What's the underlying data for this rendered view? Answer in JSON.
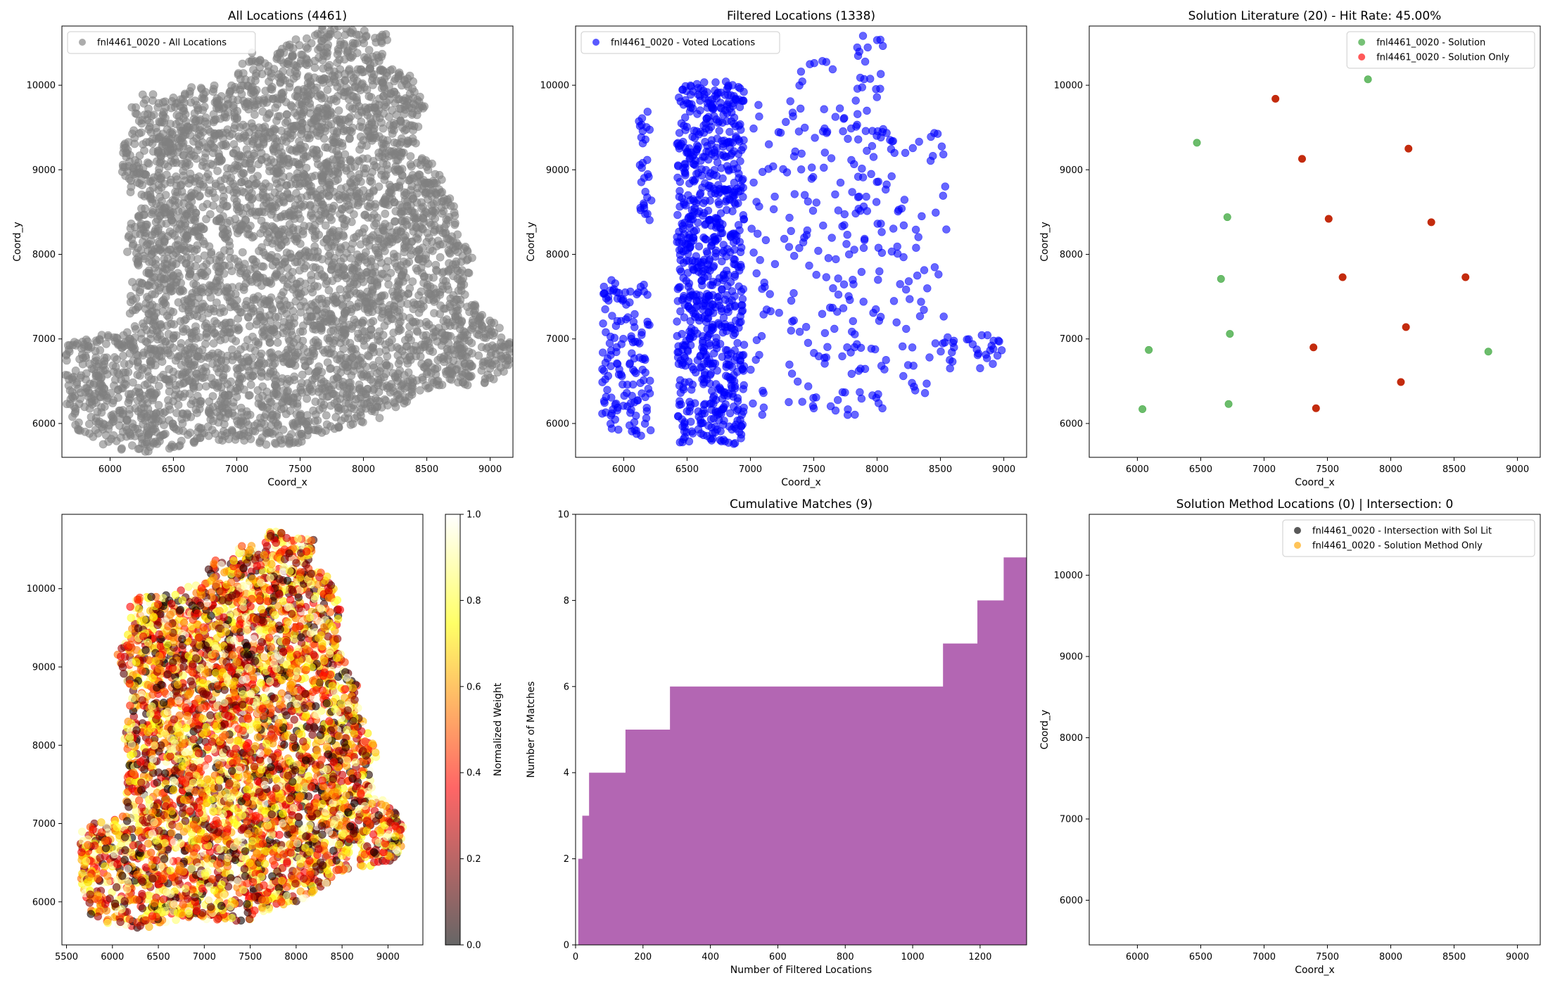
{
  "chart_data": [
    {
      "id": "p1",
      "type": "scatter",
      "title": "All Locations (4461)",
      "xlabel": "Coord_x",
      "ylabel": "Coord_y",
      "xlim": [
        5620,
        9180
      ],
      "ylim": [
        5600,
        10700
      ],
      "xticks": [
        6000,
        6500,
        7000,
        7500,
        8000,
        8500,
        9000
      ],
      "yticks": [
        6000,
        7000,
        8000,
        9000,
        10000
      ],
      "legend": {
        "position": "top-left",
        "entries": [
          {
            "label": "fnl4461_0020 - All Locations",
            "color": "#808080"
          }
        ]
      },
      "series": [
        {
          "name": "fnl4461_0020 - All Locations",
          "color": "#808080",
          "alpha": 0.6,
          "count": 4461,
          "distribution": "uniform-within-outline"
        }
      ],
      "outline": [
        [
          5640,
          6600
        ],
        [
          5660,
          6950
        ],
        [
          5800,
          7020
        ],
        [
          6150,
          7100
        ],
        [
          6150,
          7600
        ],
        [
          6200,
          7850
        ],
        [
          6120,
          8050
        ],
        [
          6200,
          8600
        ],
        [
          6100,
          8950
        ],
        [
          6050,
          9150
        ],
        [
          6220,
          9550
        ],
        [
          6150,
          9750
        ],
        [
          6250,
          9900
        ],
        [
          6550,
          9900
        ],
        [
          6620,
          10000
        ],
        [
          6950,
          10050
        ],
        [
          7100,
          10400
        ],
        [
          7250,
          10300
        ],
        [
          7400,
          10550
        ],
        [
          7600,
          10560
        ],
        [
          7700,
          10750
        ],
        [
          8200,
          10620
        ],
        [
          8150,
          10250
        ],
        [
          8350,
          10200
        ],
        [
          8500,
          9700
        ],
        [
          8450,
          9300
        ],
        [
          8700,
          8700
        ],
        [
          8750,
          8250
        ],
        [
          8880,
          7900
        ],
        [
          8800,
          7500
        ],
        [
          9050,
          7200
        ],
        [
          9170,
          6950
        ],
        [
          9140,
          6600
        ],
        [
          8950,
          6450
        ],
        [
          8600,
          6450
        ],
        [
          8050,
          6000
        ],
        [
          7800,
          5950
        ],
        [
          7450,
          5750
        ],
        [
          7200,
          5750
        ],
        [
          6800,
          5800
        ],
        [
          6300,
          5650
        ],
        [
          6000,
          5700
        ],
        [
          5750,
          5850
        ],
        [
          5650,
          6250
        ]
      ],
      "notes": ""
    },
    {
      "id": "p2",
      "type": "scatter",
      "title": "Filtered Locations (1338)",
      "xlabel": "Coord_x",
      "ylabel": "Coord_y",
      "xlim": [
        5620,
        9180
      ],
      "ylim": [
        5600,
        10700
      ],
      "xticks": [
        6000,
        6500,
        7000,
        7500,
        8000,
        8500,
        9000
      ],
      "yticks": [
        6000,
        7000,
        8000,
        9000,
        10000
      ],
      "legend": {
        "position": "top-left",
        "entries": [
          {
            "label": "fnl4461_0020 - Voted Locations",
            "color": "#0000ff"
          }
        ]
      },
      "series": [
        {
          "name": "fnl4461_0020 - Voted Locations",
          "color": "#0000ff",
          "alpha": 0.6,
          "count": 1338
        }
      ],
      "clusters": [
        {
          "x": [
            6420,
            6950
          ],
          "y": [
            5750,
            10050
          ],
          "count": 820
        },
        {
          "x": [
            5830,
            6220
          ],
          "y": [
            5850,
            7700
          ],
          "count": 140
        },
        {
          "x": [
            6120,
            6220
          ],
          "y": [
            8400,
            9700
          ],
          "count": 30
        },
        {
          "x": [
            7000,
            7350
          ],
          "y": [
            6100,
            9900
          ],
          "count": 60
        },
        {
          "x": [
            7350,
            7800
          ],
          "y": [
            6100,
            10300
          ],
          "count": 100
        },
        {
          "x": [
            7800,
            8050
          ],
          "y": [
            6100,
            10600
          ],
          "count": 90
        },
        {
          "x": [
            8050,
            8550
          ],
          "y": [
            6300,
            9500
          ],
          "count": 70
        },
        {
          "x": [
            8550,
            9000
          ],
          "y": [
            6650,
            7050
          ],
          "count": 28
        }
      ]
    },
    {
      "id": "p3",
      "type": "scatter",
      "title": "Solution Literature (20) - Hit Rate: 45.00%",
      "xlabel": "Coord_x",
      "ylabel": "Coord_y",
      "xlim": [
        5620,
        9180
      ],
      "ylim": [
        5600,
        10700
      ],
      "xticks": [
        6000,
        6500,
        7000,
        7500,
        8000,
        8500,
        9000
      ],
      "yticks": [
        6000,
        7000,
        8000,
        9000,
        10000
      ],
      "legend": {
        "position": "top-right",
        "entries": [
          {
            "label": "fnl4461_0020 - Solution",
            "color": "#2ca02c"
          },
          {
            "label": "fnl4461_0020 - Solution Only",
            "color": "#ff0000"
          }
        ]
      },
      "series": [
        {
          "name": "fnl4461_0020 - Solution",
          "color": "#2ca02c",
          "alpha": 0.7,
          "x": [
            7820,
            6470,
            6710,
            6660,
            6730,
            6090,
            6720,
            6040,
            8770
          ],
          "y": [
            10070,
            9320,
            8440,
            7710,
            7060,
            6870,
            6230,
            6170,
            6850
          ]
        },
        {
          "name": "fnl4461_0020 - Solution Only",
          "color": "#c02000",
          "alpha": 0.95,
          "x": [
            7090,
            8140,
            7300,
            7510,
            8320,
            7620,
            8590,
            8120,
            7390,
            8080,
            7410
          ],
          "y": [
            9840,
            9250,
            9130,
            8420,
            8380,
            7730,
            7730,
            7140,
            6900,
            6490,
            6180
          ]
        }
      ]
    },
    {
      "id": "p4",
      "type": "scatter",
      "title": "",
      "xlabel": "",
      "ylabel": "",
      "xlim": [
        5450,
        9380
      ],
      "ylim": [
        5450,
        10950
      ],
      "xticks": [
        5500,
        6000,
        6500,
        7000,
        7500,
        8000,
        8500,
        9000
      ],
      "yticks": [
        6000,
        7000,
        8000,
        9000,
        10000
      ],
      "colorbar": {
        "label": "Normalized Weight",
        "min": 0.0,
        "max": 1.0,
        "ticks": [
          "0.0",
          "0.2",
          "0.4",
          "0.6",
          "0.8",
          "1.0"
        ],
        "colormap": "hot"
      },
      "series": [
        {
          "color": "weight",
          "alpha": 0.6,
          "count": 4461,
          "distribution": "uniform-within-outline"
        }
      ]
    },
    {
      "id": "p5",
      "type": "area",
      "title": "Cumulative Matches (9)",
      "xlabel": "Number of Filtered Locations",
      "ylabel": "Number of Matches",
      "xlim": [
        0,
        1338
      ],
      "ylim": [
        0,
        10
      ],
      "xticks": [
        0,
        200,
        400,
        600,
        800,
        1000,
        1200
      ],
      "yticks": [
        0,
        2,
        4,
        6,
        8,
        10
      ],
      "color": "#800080",
      "alpha": 0.6,
      "steps": [
        [
          0,
          0
        ],
        [
          8,
          2
        ],
        [
          20,
          3
        ],
        [
          40,
          4
        ],
        [
          148,
          5
        ],
        [
          280,
          6
        ],
        [
          1090,
          7
        ],
        [
          1192,
          8
        ],
        [
          1270,
          9
        ],
        [
          1338,
          9
        ]
      ]
    },
    {
      "id": "p6",
      "type": "scatter",
      "title": "Solution Method Locations (0) | Intersection: 0",
      "xlabel": "Coord_x",
      "ylabel": "Coord_y",
      "xlim": [
        5620,
        9180
      ],
      "ylim": [
        5450,
        10750
      ],
      "xticks": [
        6000,
        6500,
        7000,
        7500,
        8000,
        8500,
        9000
      ],
      "yticks": [
        6000,
        7000,
        8000,
        9000,
        10000
      ],
      "legend": {
        "position": "top-right",
        "entries": [
          {
            "label": "fnl4461_0020 - Intersection with Sol Lit",
            "color": "#000000"
          },
          {
            "label": "fnl4461_0020 - Solution Method Only",
            "color": "#ffa500"
          }
        ]
      },
      "series": []
    }
  ]
}
